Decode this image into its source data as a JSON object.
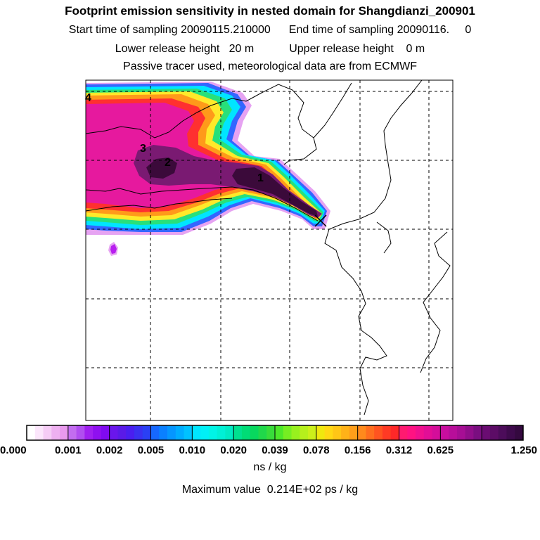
{
  "title": "Footprint emission sensitivity in nested domain for Shangdianzi_200901",
  "sampling": {
    "start": "Start time of sampling 20090115.210000",
    "end": "End time of sampling 20090116.     0"
  },
  "release": {
    "lower": "Lower release height   20 m",
    "upper": "Upper release height    0 m"
  },
  "tracer_note": "Passive tracer used, meteorological data are from ECMWF",
  "map": {
    "labels": [
      "1",
      "2",
      "3",
      "4"
    ],
    "colors": {
      "darkest": "#3b0a3a",
      "dark_purple": "#7a1a72",
      "magenta": "#e6199e",
      "pink": "#ff3aa6",
      "red": "#ff3030",
      "orange": "#ff9a1a",
      "yellow": "#ffe92a",
      "green": "#28e07a",
      "cyan": "#00e5ff",
      "blue": "#3366ff",
      "violet": "#b81ef0",
      "lavender": "#e6a3f2"
    }
  },
  "colorbar": {
    "ticks": [
      "0.000",
      "0.001",
      "0.002",
      "0.005",
      "0.010",
      "0.020",
      "0.039",
      "0.078",
      "0.156",
      "0.312",
      "0.625",
      "1.250"
    ],
    "bins": [
      [
        "#ffffff",
        "#fbe6fb",
        "#f5ccf5",
        "#eeb0f0",
        "#e99aee"
      ],
      [
        "#c36df0",
        "#b14ef0",
        "#a020f0",
        "#8f10f0",
        "#800af0"
      ],
      [
        "#6a16ec",
        "#5a1ae8",
        "#4a1ef0",
        "#3a30f0",
        "#2a40f4"
      ],
      [
        "#1668ff",
        "#0a80ff",
        "#0596ff",
        "#00acff",
        "#00c2ff"
      ],
      [
        "#00e6ff",
        "#00f0f6",
        "#00f4e6",
        "#00f0d6",
        "#00eac4"
      ],
      [
        "#00e090",
        "#00dc76",
        "#08d85e",
        "#20d84a",
        "#38dc3a"
      ],
      [
        "#4ce82a",
        "#76ee22",
        "#98f01e",
        "#b6f01c",
        "#ccf01a"
      ],
      [
        "#f0e80e",
        "#ffd814",
        "#ffc616",
        "#ffb218",
        "#ff9e1a"
      ],
      [
        "#ff8a1c",
        "#ff6e1e",
        "#ff5420",
        "#ff3a24",
        "#ff2828"
      ],
      [
        "#ff1a70",
        "#ff1282",
        "#f0108e",
        "#e20e96",
        "#d40e9a"
      ],
      [
        "#c80e9e",
        "#b80e9a",
        "#a60e94",
        "#900e8a",
        "#7a0e80"
      ],
      [
        "#6a0c72",
        "#5c0c66",
        "#4c0c5a",
        "#3e0a4c",
        "#34093f"
      ]
    ],
    "unit": "ns / kg"
  },
  "max_value": "Maximum value  0.214E+02 ps / kg"
}
